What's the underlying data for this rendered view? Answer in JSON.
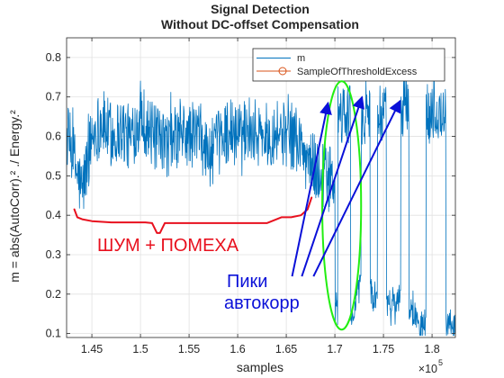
{
  "chart_data": {
    "type": "line",
    "title": [
      "Signal Detection",
      "Without DC-offset Compensation"
    ],
    "xlabel": "samples",
    "ylabel": "m = abs(AutoCorr).² ./ Energy.²",
    "x_exponent_label": "×10",
    "x_exponent_power": "5",
    "xlim": [
      142400,
      182400
    ],
    "ylim": [
      0.09,
      0.85
    ],
    "xticks": [
      145000,
      150000,
      155000,
      160000,
      165000,
      170000,
      175000,
      180000
    ],
    "xtick_labels": [
      "1.45",
      "1.5",
      "1.55",
      "1.6",
      "1.65",
      "1.7",
      "1.75",
      "1.8"
    ],
    "yticks": [
      0.1,
      0.2,
      0.3,
      0.4,
      0.5,
      0.6,
      0.7,
      0.8
    ],
    "ytick_labels": [
      "0.1",
      "0.2",
      "0.3",
      "0.4",
      "0.5",
      "0.6",
      "0.7",
      "0.8"
    ],
    "grid": true,
    "legend_position": "top-right",
    "series": [
      {
        "name": "m",
        "color": "#0072bd",
        "style": "line",
        "envelope_x": [
          142400,
          143000,
          143500,
          144000,
          145000,
          146000,
          147000,
          148000,
          149000,
          150000,
          151000,
          152000,
          153000,
          154000,
          155000,
          156000,
          157000,
          158000,
          159000,
          160000,
          161000,
          162000,
          163000,
          164000,
          165000,
          166000,
          167000,
          168000,
          169000,
          170000
        ],
        "envelope_y": [
          0.6,
          0.56,
          0.5,
          0.46,
          0.6,
          0.64,
          0.6,
          0.62,
          0.59,
          0.66,
          0.61,
          0.58,
          0.58,
          0.6,
          0.6,
          0.61,
          0.55,
          0.58,
          0.62,
          0.6,
          0.63,
          0.61,
          0.6,
          0.62,
          0.6,
          0.6,
          0.55,
          0.52,
          0.5,
          0.48
        ],
        "pulses": [
          {
            "start": 170300,
            "end": 171600,
            "high": 0.65,
            "low": 0.15
          },
          {
            "start": 172700,
            "end": 173600,
            "high": 0.66,
            "low": 0.14
          },
          {
            "start": 174400,
            "end": 175300,
            "high": 0.65,
            "low": 0.13
          },
          {
            "start": 176800,
            "end": 177600,
            "high": 0.68,
            "low": 0.13
          },
          {
            "start": 179400,
            "end": 181400,
            "high": 0.66,
            "low": 0.15
          }
        ],
        "spikes": [
          {
            "x": 170700,
            "y": 0.72
          },
          {
            "x": 172900,
            "y": 0.71
          },
          {
            "x": 174900,
            "y": 0.75
          },
          {
            "x": 177200,
            "y": 0.81
          },
          {
            "x": 180200,
            "y": 0.79
          }
        ]
      },
      {
        "name": "SampleOfThresholdExcess",
        "color": "#d95319",
        "style": "line-circle-marker",
        "x": [],
        "y": []
      }
    ],
    "annotations": {
      "noise_label": "ШУМ + ПОМЕХА",
      "noise_color": "#e8101e",
      "noise_bracket_x": [
        143200,
        143500,
        144000,
        145000,
        147000,
        149000,
        150500,
        151200,
        151700,
        152000,
        152500,
        153000,
        155000,
        160000,
        163000,
        164500,
        165500,
        166500,
        167200,
        167600
      ],
      "noise_bracket_y": [
        0.415,
        0.395,
        0.39,
        0.385,
        0.382,
        0.382,
        0.382,
        0.38,
        0.355,
        0.355,
        0.38,
        0.38,
        0.38,
        0.38,
        0.38,
        0.395,
        0.395,
        0.4,
        0.415,
        0.445
      ],
      "peaks_label_line1": "Пики",
      "peaks_label_line2": "автокорр",
      "peaks_color": "#0a10d8",
      "peak_arrows": [
        {
          "from": [
            165600,
            0.245
          ],
          "to": [
            169300,
            0.685
          ]
        },
        {
          "from": [
            166600,
            0.245
          ],
          "to": [
            172800,
            0.7
          ]
        },
        {
          "from": [
            167800,
            0.245
          ],
          "to": [
            176700,
            0.69
          ]
        }
      ],
      "ellipse_color": "#22ee11",
      "ellipse_center": [
        170700,
        0.425
      ],
      "ellipse_rx": 2000,
      "ellipse_ry": 0.315
    }
  }
}
